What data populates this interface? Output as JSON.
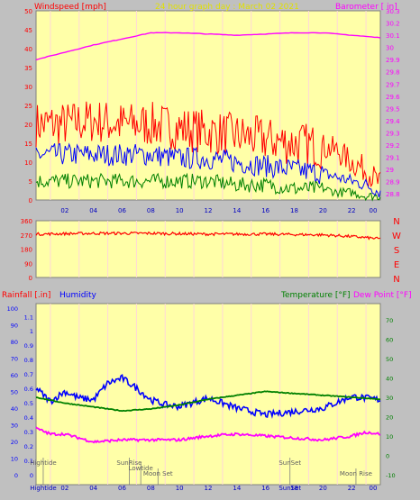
{
  "chart_data": [
    {
      "type": "line",
      "title": "24 hour graph day : March 02 2021",
      "ylabel_left": "Windspeed [mph]",
      "ylabel_right": "Barometer [ in]",
      "x_ticks": [
        "02",
        "04",
        "06",
        "08",
        "10",
        "12",
        "14",
        "16",
        "18",
        "20",
        "22",
        "00"
      ],
      "y_left": {
        "min": 0,
        "max": 50,
        "ticks": [
          0,
          5,
          10,
          15,
          20,
          25,
          30,
          35,
          40,
          45,
          50
        ]
      },
      "y_right": {
        "min": 28.75,
        "max": 30.3,
        "ticks": [
          "28.8",
          "28.9",
          "29",
          "29.1",
          "29.2",
          "29.3",
          "29.4",
          "29.5",
          "29.6",
          "29.7",
          "29.8",
          "29.9",
          "30",
          "30.1",
          "30.2",
          "30.3"
        ]
      },
      "series": [
        {
          "color": "#ff0000",
          "hours": [
            0,
            2,
            4,
            6,
            8,
            10,
            12,
            14,
            16,
            18,
            20,
            21,
            22,
            23,
            24
          ],
          "values": [
            20,
            20,
            21,
            20,
            20,
            19,
            18,
            17,
            16,
            15,
            14,
            13,
            10,
            8,
            4
          ]
        },
        {
          "color": "#0000ff",
          "hours": [
            0,
            2,
            4,
            6,
            8,
            10,
            12,
            14,
            16,
            18,
            20,
            21,
            22,
            23,
            24
          ],
          "values": [
            12,
            12,
            12,
            12,
            12,
            11,
            11,
            10,
            9,
            8,
            7,
            6,
            5,
            4,
            2
          ]
        },
        {
          "color": "#008000",
          "hours": [
            0,
            2,
            4,
            6,
            8,
            10,
            12,
            14,
            16,
            18,
            20,
            21,
            22,
            23,
            24
          ],
          "values": [
            5,
            5,
            5,
            5,
            5,
            5,
            5,
            4,
            4,
            3,
            3,
            2,
            2,
            1,
            1
          ]
        },
        {
          "color": "#ff00ff",
          "axis": "right",
          "hours": [
            0,
            2,
            4,
            6,
            8,
            10,
            12,
            14,
            16,
            18,
            20,
            22,
            24
          ],
          "values": [
            29.9,
            29.96,
            30.02,
            30.07,
            30.12,
            30.12,
            30.11,
            30.1,
            30.11,
            30.12,
            30.12,
            30.1,
            30.08
          ]
        }
      ]
    },
    {
      "type": "scatter",
      "y_ticks": [
        0,
        90,
        180,
        270,
        360
      ],
      "compass_labels": [
        "N",
        "W",
        "S",
        "E",
        "N"
      ],
      "series": [
        {
          "color": "#ff0000",
          "hours": [
            0,
            4,
            8,
            12,
            16,
            20,
            22,
            24
          ],
          "values": [
            275,
            280,
            280,
            275,
            275,
            270,
            260,
            245
          ]
        }
      ]
    },
    {
      "type": "line",
      "ylabel_left": "Rainfall [.in]",
      "ylabel_left2": "Humidity",
      "ylabel_right": "Temperature [°F]",
      "ylabel_right2": "Dew Point [°F]",
      "x_ticks": [
        "02",
        "04",
        "06",
        "08",
        "10",
        "12",
        "14",
        "16",
        "18",
        "20",
        "22",
        "00"
      ],
      "y_humidity_ticks": [
        0,
        10,
        20,
        30,
        40,
        50,
        60,
        70,
        80,
        90,
        100
      ],
      "y_rain_ticks": [
        "0",
        "0.1",
        "0.2",
        "0.3",
        "0.4",
        "0.5",
        "0.6",
        "0.7",
        "0.8",
        "0.9",
        "1",
        "1.1"
      ],
      "y_temp_ticks": [
        "-10",
        "0",
        "10",
        "20",
        "30",
        "40",
        "50",
        "60",
        "70"
      ],
      "series": [
        {
          "color": "#0000ff",
          "axis": "humidity",
          "hours": [
            0,
            1,
            2,
            3,
            4,
            5,
            6,
            7,
            8,
            9,
            10,
            12,
            14,
            16,
            18,
            20,
            22,
            24
          ],
          "values": [
            52,
            44,
            50,
            46,
            45,
            55,
            58,
            52,
            45,
            42,
            41,
            46,
            40,
            36,
            38,
            40,
            47,
            45
          ]
        },
        {
          "color": "#008000",
          "axis": "temp",
          "hours": [
            0,
            2,
            4,
            6,
            8,
            10,
            12,
            14,
            16,
            18,
            20,
            22,
            24
          ],
          "values": [
            30,
            27,
            25,
            23,
            24,
            26,
            29,
            31,
            33,
            32,
            31,
            30,
            29
          ]
        },
        {
          "color": "#ff00ff",
          "axis": "temp",
          "hours": [
            0,
            1,
            2,
            4,
            6,
            8,
            10,
            12,
            14,
            16,
            18,
            20,
            22,
            23,
            24
          ],
          "values": [
            14,
            11,
            11,
            7,
            8,
            8,
            8,
            10,
            11,
            10,
            9,
            8,
            10,
            12,
            11
          ]
        }
      ],
      "annotations": [
        {
          "label": "Hightide",
          "hour": 0.5,
          "row": "high"
        },
        {
          "label": "SunRise",
          "hour": 6.5,
          "row": "high"
        },
        {
          "label": "Lowtide",
          "hour": 7.3,
          "row": "mid"
        },
        {
          "label": "Moon Set",
          "hour": 8.5,
          "row": "low"
        },
        {
          "label": "SunSet",
          "hour": 17.7,
          "row": "high"
        },
        {
          "label": "Moon Rise",
          "hour": 22.3,
          "row": "low"
        }
      ],
      "bottom_labels": [
        "Hightide",
        "SunSet"
      ]
    }
  ]
}
